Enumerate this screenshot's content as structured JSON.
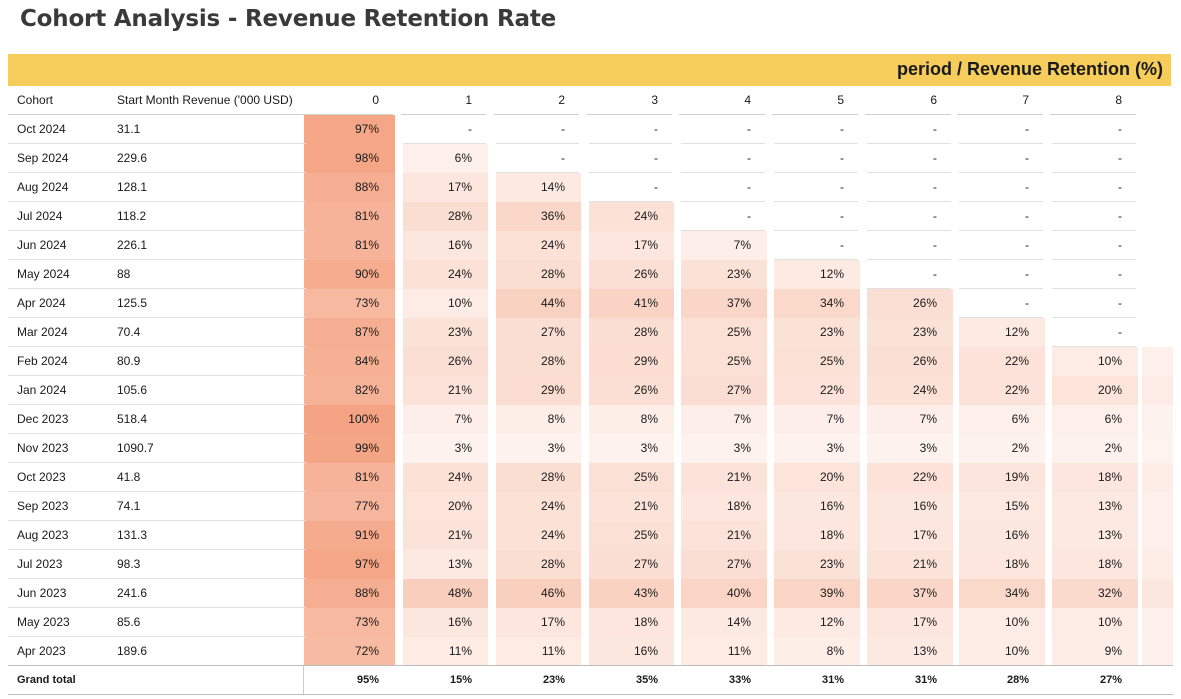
{
  "title": "Cohort Analysis - Revenue Retention Rate",
  "banner": "period / Revenue Retention (%)",
  "colors": {
    "banner": "#f6cd5a",
    "heat_max": "#f4a484",
    "empty": "#ffffff"
  },
  "headers": {
    "cohort": "Cohort",
    "revenue": "Start Month Revenue ('000 USD)",
    "periods": [
      "0",
      "1",
      "2",
      "3",
      "4",
      "5",
      "6",
      "7",
      "8"
    ]
  },
  "chart_data": {
    "type": "heatmap",
    "title": "Cohort Analysis - Revenue Retention Rate",
    "column_group_label": "period / Revenue Retention (%)",
    "x": [
      0,
      1,
      2,
      3,
      4,
      5,
      6,
      7,
      8
    ],
    "rows": [
      {
        "cohort": "Oct 2024",
        "revenue": "31.1",
        "values": [
          "97%",
          "-",
          "-",
          "-",
          "-",
          "-",
          "-",
          "-",
          "-"
        ]
      },
      {
        "cohort": "Sep 2024",
        "revenue": "229.6",
        "values": [
          "98%",
          "6%",
          "-",
          "-",
          "-",
          "-",
          "-",
          "-",
          "-"
        ]
      },
      {
        "cohort": "Aug 2024",
        "revenue": "128.1",
        "values": [
          "88%",
          "17%",
          "14%",
          "-",
          "-",
          "-",
          "-",
          "-",
          "-"
        ]
      },
      {
        "cohort": "Jul 2024",
        "revenue": "118.2",
        "values": [
          "81%",
          "28%",
          "36%",
          "24%",
          "-",
          "-",
          "-",
          "-",
          "-"
        ]
      },
      {
        "cohort": "Jun 2024",
        "revenue": "226.1",
        "values": [
          "81%",
          "16%",
          "24%",
          "17%",
          "7%",
          "-",
          "-",
          "-",
          "-"
        ]
      },
      {
        "cohort": "May 2024",
        "revenue": "88",
        "values": [
          "90%",
          "24%",
          "28%",
          "26%",
          "23%",
          "12%",
          "-",
          "-",
          "-"
        ]
      },
      {
        "cohort": "Apr 2024",
        "revenue": "125.5",
        "values": [
          "73%",
          "10%",
          "44%",
          "41%",
          "37%",
          "34%",
          "26%",
          "-",
          "-"
        ]
      },
      {
        "cohort": "Mar 2024",
        "revenue": "70.4",
        "values": [
          "87%",
          "23%",
          "27%",
          "28%",
          "25%",
          "23%",
          "23%",
          "12%",
          "-"
        ]
      },
      {
        "cohort": "Feb 2024",
        "revenue": "80.9",
        "values": [
          "84%",
          "26%",
          "28%",
          "29%",
          "25%",
          "25%",
          "26%",
          "22%",
          "10%"
        ]
      },
      {
        "cohort": "Jan 2024",
        "revenue": "105.6",
        "values": [
          "82%",
          "21%",
          "29%",
          "26%",
          "27%",
          "22%",
          "24%",
          "22%",
          "20%"
        ]
      },
      {
        "cohort": "Dec 2023",
        "revenue": "518.4",
        "values": [
          "100%",
          "7%",
          "8%",
          "8%",
          "7%",
          "7%",
          "7%",
          "6%",
          "6%"
        ]
      },
      {
        "cohort": "Nov 2023",
        "revenue": "1090.7",
        "values": [
          "99%",
          "3%",
          "3%",
          "3%",
          "3%",
          "3%",
          "3%",
          "2%",
          "2%"
        ]
      },
      {
        "cohort": "Oct 2023",
        "revenue": "41.8",
        "values": [
          "81%",
          "24%",
          "28%",
          "25%",
          "21%",
          "20%",
          "22%",
          "19%",
          "18%"
        ]
      },
      {
        "cohort": "Sep 2023",
        "revenue": "74.1",
        "values": [
          "77%",
          "20%",
          "24%",
          "21%",
          "18%",
          "16%",
          "16%",
          "15%",
          "13%"
        ]
      },
      {
        "cohort": "Aug 2023",
        "revenue": "131.3",
        "values": [
          "91%",
          "21%",
          "24%",
          "25%",
          "21%",
          "18%",
          "17%",
          "16%",
          "13%"
        ]
      },
      {
        "cohort": "Jul 2023",
        "revenue": "98.3",
        "values": [
          "97%",
          "13%",
          "28%",
          "27%",
          "27%",
          "23%",
          "21%",
          "18%",
          "18%"
        ]
      },
      {
        "cohort": "Jun 2023",
        "revenue": "241.6",
        "values": [
          "88%",
          "48%",
          "46%",
          "43%",
          "40%",
          "39%",
          "37%",
          "34%",
          "32%"
        ]
      },
      {
        "cohort": "May 2023",
        "revenue": "85.6",
        "values": [
          "73%",
          "16%",
          "17%",
          "18%",
          "14%",
          "12%",
          "17%",
          "10%",
          "10%"
        ]
      },
      {
        "cohort": "Apr 2023",
        "revenue": "189.6",
        "values": [
          "72%",
          "11%",
          "11%",
          "16%",
          "11%",
          "8%",
          "13%",
          "10%",
          "9%"
        ]
      }
    ],
    "grand_total": {
      "label": "Grand total",
      "values": [
        "95%",
        "15%",
        "23%",
        "35%",
        "33%",
        "31%",
        "31%",
        "28%",
        "27%"
      ]
    }
  }
}
